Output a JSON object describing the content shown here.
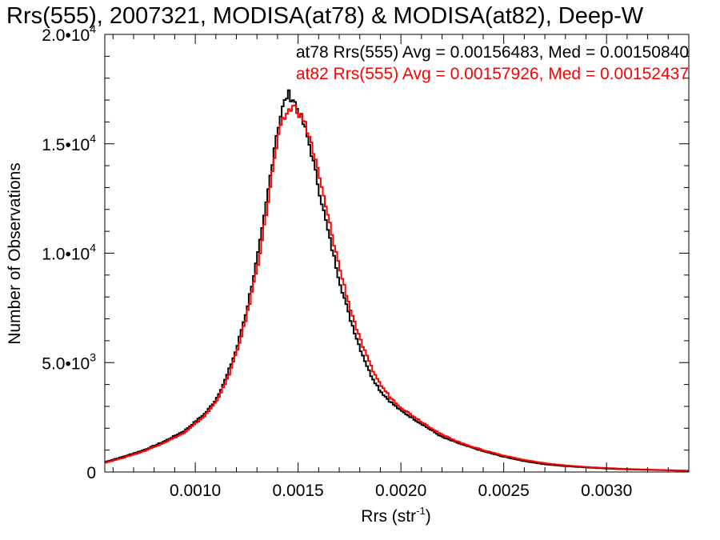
{
  "chart_data": {
    "type": "line",
    "title": "Rrs(555), 2007321, MODISA(at78) & MODISA(at82), Deep-W",
    "xlabel": "Rrs (str",
    "xlabel_sup": "-1",
    "xlabel_close": ")",
    "ylabel": "Number of Observations",
    "xlim": [
      0.00056,
      0.0034
    ],
    "ylim": [
      0,
      20000
    ],
    "x_ticks": [
      {
        "value": 0.001,
        "label": "0.0010"
      },
      {
        "value": 0.0015,
        "label": "0.0015"
      },
      {
        "value": 0.002,
        "label": "0.0020"
      },
      {
        "value": 0.0025,
        "label": "0.0025"
      },
      {
        "value": 0.003,
        "label": "0.0030"
      }
    ],
    "y_ticks": [
      {
        "value": 0,
        "mantissa": "0",
        "exp": ""
      },
      {
        "value": 5000,
        "mantissa": "5.0•10",
        "exp": "3"
      },
      {
        "value": 10000,
        "mantissa": "1.0•10",
        "exp": "4"
      },
      {
        "value": 15000,
        "mantissa": "1.5•10",
        "exp": "4"
      },
      {
        "value": 20000,
        "mantissa": "2.0•10",
        "exp": "4"
      }
    ],
    "grid": false,
    "series": [
      {
        "name": "at78",
        "color": "#000000",
        "stat_text": "at78 Rrs(555) Avg = 0.00156483, Med = 0.00150840",
        "points": [
          [
            0.00056,
            450
          ],
          [
            0.00065,
            700
          ],
          [
            0.00075,
            1000
          ],
          [
            0.00085,
            1400
          ],
          [
            0.00095,
            1900
          ],
          [
            0.00105,
            2700
          ],
          [
            0.0011,
            3300
          ],
          [
            0.00115,
            4300
          ],
          [
            0.0012,
            5600
          ],
          [
            0.00125,
            7400
          ],
          [
            0.0013,
            9700
          ],
          [
            0.00133,
            11300
          ],
          [
            0.00136,
            13200
          ],
          [
            0.00139,
            15200
          ],
          [
            0.00142,
            16500
          ],
          [
            0.00145,
            17300
          ],
          [
            0.00148,
            17000
          ],
          [
            0.0015,
            16500
          ],
          [
            0.00153,
            15800
          ],
          [
            0.00156,
            14800
          ],
          [
            0.0016,
            13000
          ],
          [
            0.00165,
            10800
          ],
          [
            0.0017,
            8800
          ],
          [
            0.00175,
            7100
          ],
          [
            0.0018,
            5700
          ],
          [
            0.00185,
            4500
          ],
          [
            0.0019,
            3700
          ],
          [
            0.00195,
            3200
          ],
          [
            0.002,
            2800
          ],
          [
            0.0021,
            2200
          ],
          [
            0.0022,
            1600
          ],
          [
            0.0023,
            1250
          ],
          [
            0.0024,
            950
          ],
          [
            0.0025,
            700
          ],
          [
            0.0026,
            500
          ],
          [
            0.0027,
            350
          ],
          [
            0.0028,
            270
          ],
          [
            0.0029,
            210
          ],
          [
            0.003,
            160
          ],
          [
            0.0031,
            120
          ],
          [
            0.0032,
            100
          ],
          [
            0.0033,
            80
          ],
          [
            0.0034,
            50
          ]
        ]
      },
      {
        "name": "at82",
        "color": "#ff0000",
        "stat_text": "at82 Rrs(555) Avg = 0.00157926, Med = 0.00152437",
        "points": [
          [
            0.00056,
            420
          ],
          [
            0.00065,
            650
          ],
          [
            0.00075,
            950
          ],
          [
            0.00085,
            1350
          ],
          [
            0.00095,
            1800
          ],
          [
            0.00105,
            2600
          ],
          [
            0.0011,
            3200
          ],
          [
            0.00115,
            4100
          ],
          [
            0.0012,
            5400
          ],
          [
            0.00125,
            7100
          ],
          [
            0.0013,
            9300
          ],
          [
            0.00133,
            10900
          ],
          [
            0.00136,
            12700
          ],
          [
            0.00139,
            14600
          ],
          [
            0.00142,
            15900
          ],
          [
            0.00145,
            16500
          ],
          [
            0.00148,
            16700
          ],
          [
            0.0015,
            16500
          ],
          [
            0.00153,
            16000
          ],
          [
            0.00156,
            15200
          ],
          [
            0.0016,
            13600
          ],
          [
            0.00165,
            11500
          ],
          [
            0.0017,
            9400
          ],
          [
            0.00175,
            7600
          ],
          [
            0.0018,
            6100
          ],
          [
            0.00185,
            4900
          ],
          [
            0.0019,
            4000
          ],
          [
            0.00195,
            3400
          ],
          [
            0.002,
            2950
          ],
          [
            0.0021,
            2300
          ],
          [
            0.0022,
            1700
          ],
          [
            0.0023,
            1300
          ],
          [
            0.0024,
            1000
          ],
          [
            0.0025,
            750
          ],
          [
            0.0026,
            550
          ],
          [
            0.0027,
            400
          ],
          [
            0.0028,
            300
          ],
          [
            0.0029,
            230
          ],
          [
            0.003,
            180
          ],
          [
            0.0031,
            140
          ],
          [
            0.0032,
            110
          ],
          [
            0.0033,
            85
          ],
          [
            0.0034,
            60
          ]
        ]
      }
    ]
  }
}
